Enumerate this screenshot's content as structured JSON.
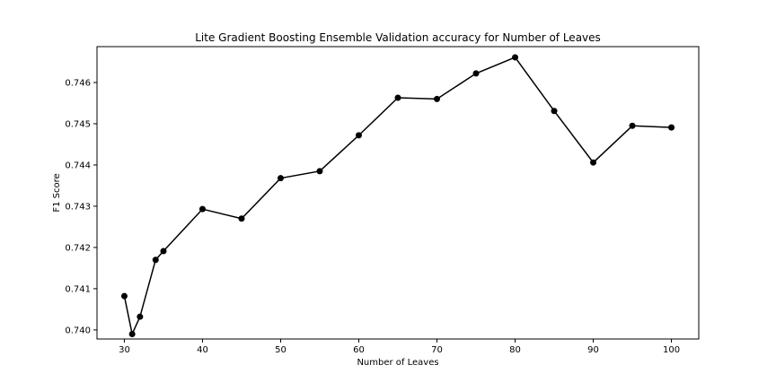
{
  "chart_data": {
    "type": "line",
    "title": "Lite Gradient Boosting Ensemble Validation accuracy for Number of Leaves",
    "xlabel": "Number of Leaves",
    "ylabel": "F1 Score",
    "xlim": [
      26.5,
      103.5
    ],
    "ylim": [
      0.73978,
      0.74687
    ],
    "xticks": [
      30,
      40,
      50,
      60,
      70,
      80,
      90,
      100
    ],
    "yticks": [
      0.74,
      0.741,
      0.742,
      0.743,
      0.744,
      0.745,
      0.746
    ],
    "xtick_labels": [
      "30",
      "40",
      "50",
      "60",
      "70",
      "80",
      "90",
      "100"
    ],
    "ytick_labels": [
      "0.740",
      "0.741",
      "0.742",
      "0.743",
      "0.744",
      "0.745",
      "0.746"
    ],
    "grid": false,
    "legend": "none",
    "series": [
      {
        "color": "#000000",
        "marker": "circle",
        "x": [
          30,
          31,
          32,
          34,
          35,
          40,
          45,
          50,
          55,
          60,
          65,
          70,
          75,
          80,
          85,
          90,
          95,
          100
        ],
        "y": [
          0.74082,
          0.7399,
          0.74032,
          0.7417,
          0.74191,
          0.74293,
          0.7427,
          0.74368,
          0.74385,
          0.74472,
          0.74563,
          0.7456,
          0.74622,
          0.74661,
          0.74531,
          0.74406,
          0.74495,
          0.74491
        ]
      }
    ]
  }
}
